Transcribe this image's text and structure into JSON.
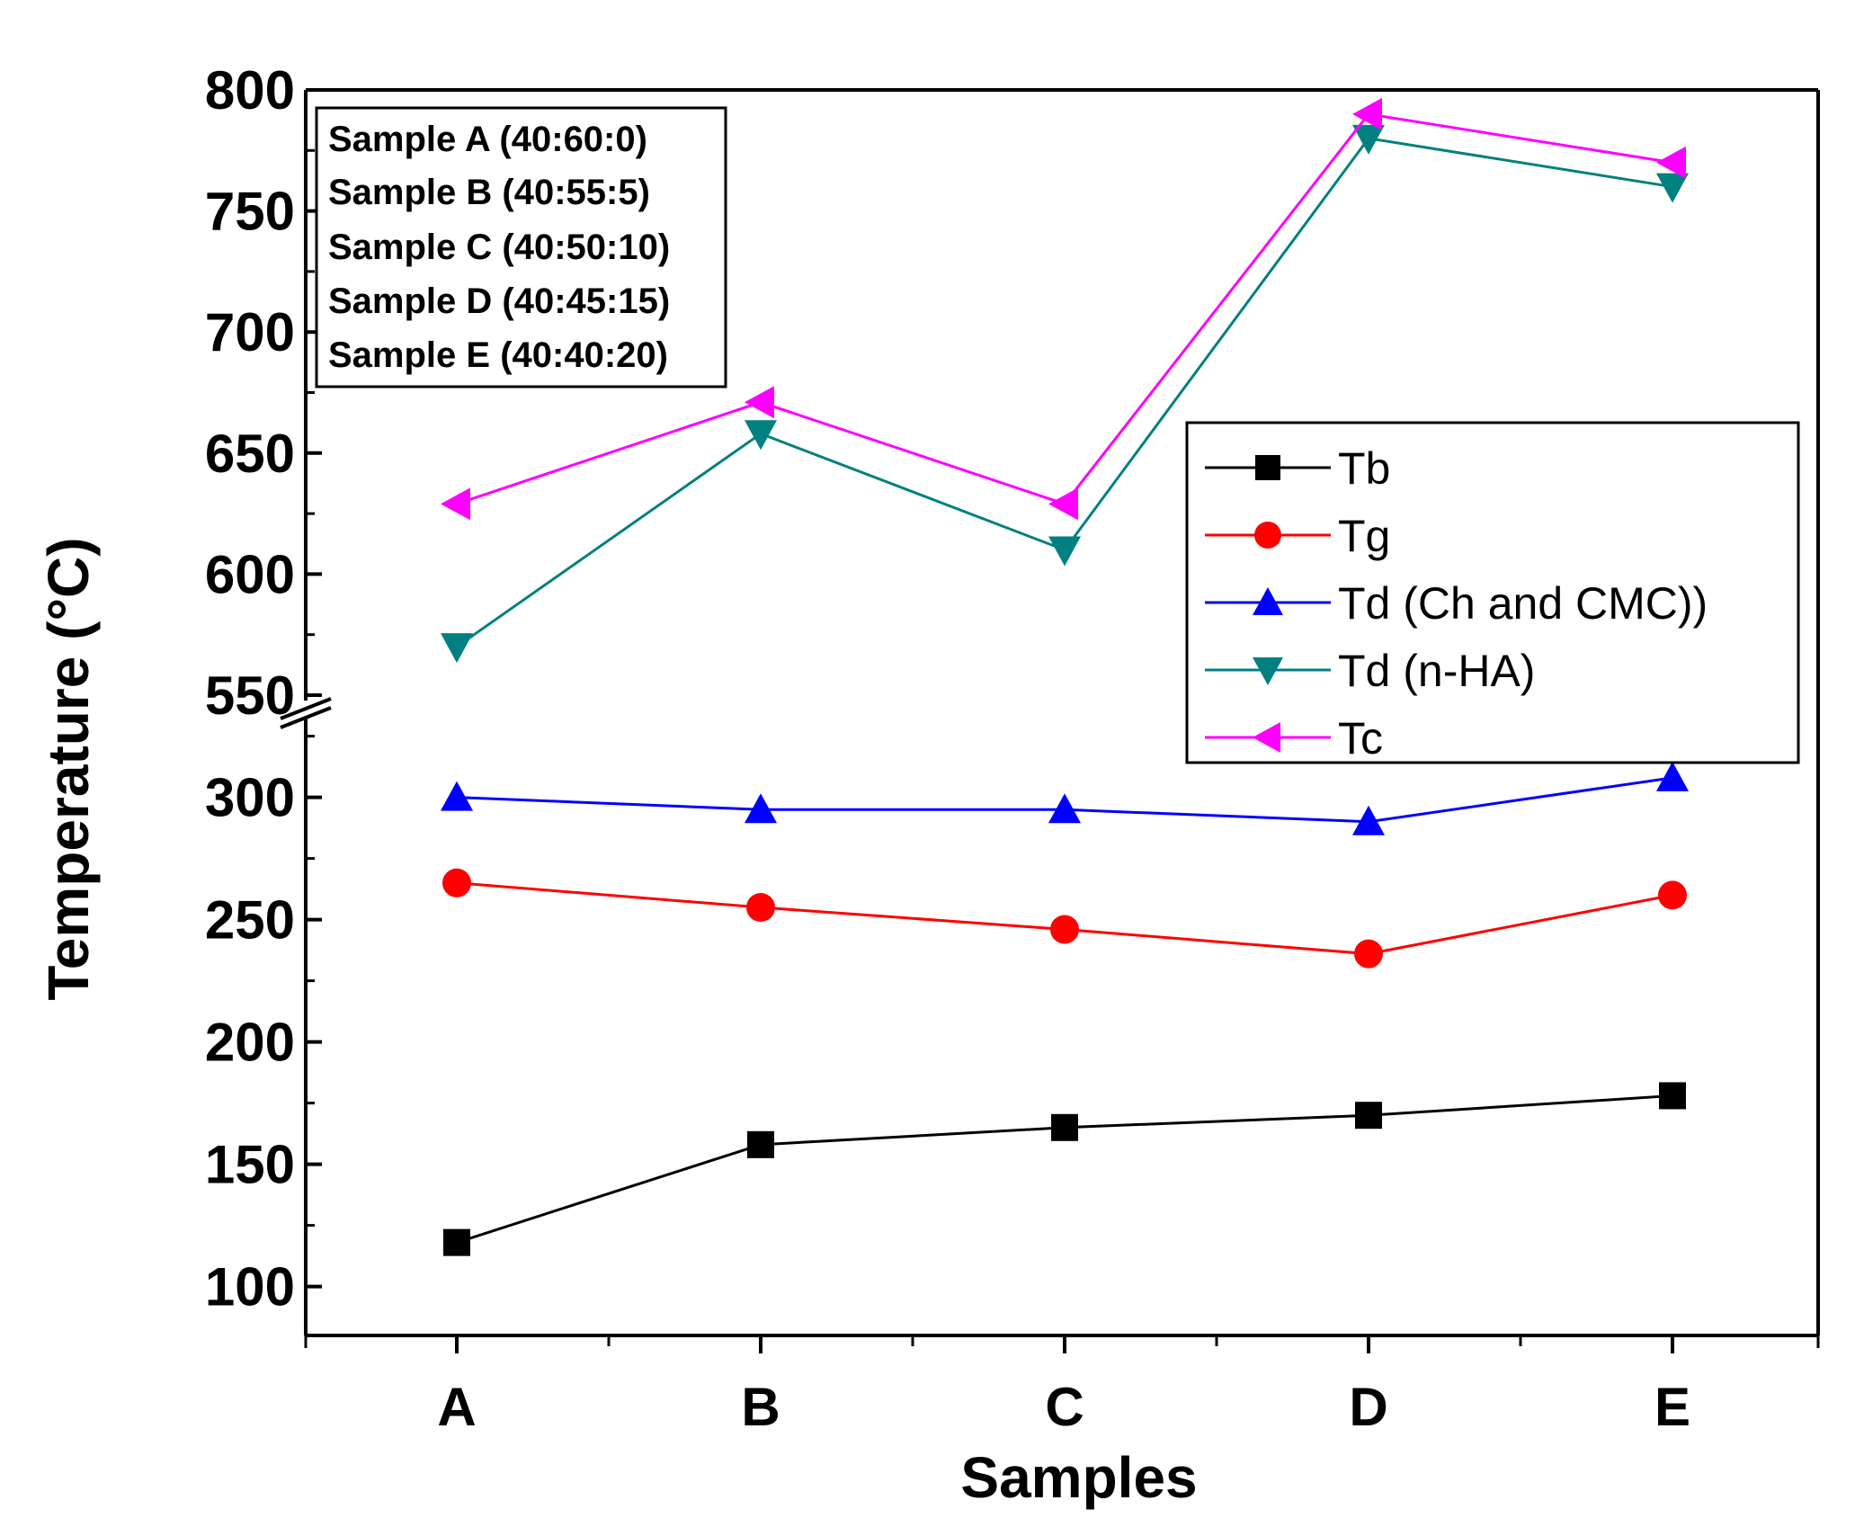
{
  "chart_data": {
    "type": "line",
    "title": "",
    "xlabel": "Samples",
    "ylabel": "Temperature (°C)",
    "categories": [
      "A",
      "B",
      "C",
      "D",
      "E"
    ],
    "axis_break": [
      330,
      550
    ],
    "ylim_lower": [
      80,
      330
    ],
    "ylim_upper": [
      550,
      800
    ],
    "yticks_lower": [
      "100",
      "150",
      "200",
      "250",
      "300"
    ],
    "yticks_upper": [
      "550",
      "600",
      "650",
      "700",
      "750",
      "800"
    ],
    "legend_position": "right-middle",
    "series": [
      {
        "name": "Tb",
        "color": "#000000",
        "marker": "square",
        "values": [
          118,
          158,
          165,
          170,
          178
        ]
      },
      {
        "name": "Tg",
        "color": "#ff0000",
        "marker": "circle",
        "values": [
          265,
          255,
          246,
          236,
          260
        ]
      },
      {
        "name": "Td (Ch and CMC))",
        "color": "#0000ff",
        "marker": "triangle-up",
        "values": [
          300,
          295,
          295,
          290,
          308
        ]
      },
      {
        "name": "Td (n-HA)",
        "color": "#008080",
        "marker": "triangle-down",
        "values": [
          570,
          658,
          610,
          780,
          760
        ]
      },
      {
        "name": "Tc",
        "color": "#ff00ff",
        "marker": "triangle-left",
        "values": [
          629,
          671,
          629,
          790,
          770
        ]
      }
    ],
    "annotation_lines": [
      "Sample A (40:60:0)",
      "Sample B (40:55:5)",
      "Sample C (40:50:10)",
      "Sample D (40:45:15)",
      "Sample E (40:40:20)"
    ]
  }
}
